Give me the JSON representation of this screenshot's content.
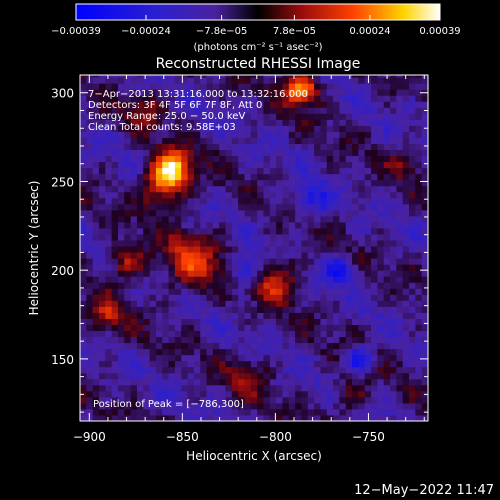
{
  "chart_data": {
    "type": "heatmap",
    "title": "Reconstructed RHESSI Image",
    "xlabel": "Heliocentric X (arcsec)",
    "ylabel": "Heliocentric Y (arcsec)",
    "xlim": [
      -905,
      -718
    ],
    "ylim": [
      115,
      310
    ],
    "x_ticks": [
      -900,
      -850,
      -800,
      -750
    ],
    "x_tick_labels": [
      "−900",
      "−850",
      "−800",
      "−750"
    ],
    "y_ticks": [
      150,
      200,
      250,
      300
    ],
    "y_tick_labels": [
      "150",
      "200",
      "250",
      "300"
    ],
    "colorbar": {
      "range": [
        -0.00039,
        0.00039
      ],
      "tick_values": [
        -0.00039,
        -0.00024,
        -7.8e-05,
        7.8e-05,
        0.00024,
        0.00039
      ],
      "tick_labels": [
        "−0.00039",
        "−0.00024",
        "−7.8e−05",
        "7.8e−05",
        "0.00024",
        "0.00039"
      ],
      "unit_text": "(photons cm⁻² s⁻¹ asec⁻²)"
    },
    "annotations": [
      "7−Apr−2013 13:31:16.000 to 13:32:16.000",
      "Detectors: 3F 4F 5F 6F 7F 8F, Att 0",
      "Energy Range: 25.0 − 50.0 keV",
      "Clean     Total counts: 9.58E+03",
      "Position of Peak = [−786,300]"
    ],
    "peak": {
      "x": -786,
      "y": 300
    },
    "hot_spots": [
      {
        "x": -855,
        "y": 258,
        "r": 10,
        "v": 0.00036
      },
      {
        "x": -786,
        "y": 302,
        "r": 9,
        "v": 0.00039
      },
      {
        "x": -860,
        "y": 248,
        "r": 12,
        "v": 0.00026
      },
      {
        "x": -845,
        "y": 205,
        "r": 16,
        "v": 0.00022
      },
      {
        "x": -880,
        "y": 205,
        "r": 10,
        "v": 0.0002
      },
      {
        "x": -800,
        "y": 195,
        "r": 12,
        "v": 0.00022
      },
      {
        "x": -890,
        "y": 175,
        "r": 10,
        "v": 0.00018
      },
      {
        "x": -815,
        "y": 140,
        "r": 10,
        "v": 0.00015
      },
      {
        "x": -870,
        "y": 290,
        "r": 10,
        "v": 0.00014
      },
      {
        "x": -730,
        "y": 260,
        "r": 8,
        "v": 0.00012
      },
      {
        "x": -760,
        "y": 130,
        "r": 10,
        "v": 0.00012
      }
    ],
    "cold_spots": [
      {
        "x": -815,
        "y": 200,
        "r": 8,
        "v": -0.00024
      },
      {
        "x": -765,
        "y": 200,
        "r": 8,
        "v": -0.00022
      },
      {
        "x": -755,
        "y": 150,
        "r": 7,
        "v": -0.00025
      },
      {
        "x": -780,
        "y": 240,
        "r": 9,
        "v": -0.00018
      }
    ]
  },
  "footer": {
    "timestamp": "12−May−2022 11:47"
  }
}
